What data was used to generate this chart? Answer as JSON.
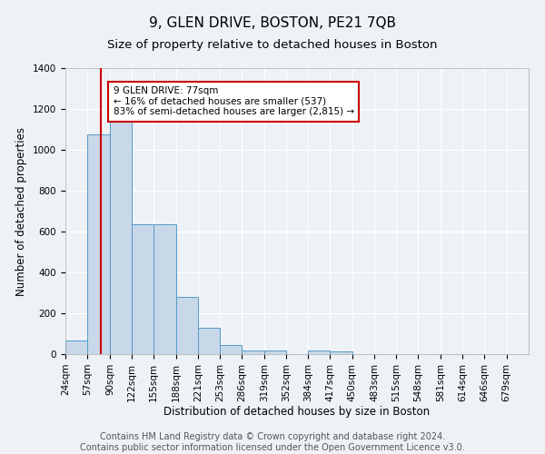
{
  "title": "9, GLEN DRIVE, BOSTON, PE21 7QB",
  "subtitle": "Size of property relative to detached houses in Boston",
  "xlabel": "Distribution of detached houses by size in Boston",
  "ylabel": "Number of detached properties",
  "bar_edges": [
    24,
    57,
    90,
    122,
    155,
    188,
    221,
    253,
    286,
    319,
    352,
    384,
    417,
    450,
    483,
    515,
    548,
    581,
    614,
    646,
    679
  ],
  "bar_heights": [
    65,
    1075,
    1150,
    635,
    635,
    280,
    130,
    45,
    20,
    20,
    0,
    20,
    15,
    0,
    0,
    0,
    0,
    0,
    0,
    0
  ],
  "bar_color": "#c8d8e8",
  "bar_edge_color": "#5599cc",
  "vline_x": 77,
  "vline_color": "#cc0000",
  "annotation_text": "9 GLEN DRIVE: 77sqm\n← 16% of detached houses are smaller (537)\n83% of semi-detached houses are larger (2,815) →",
  "annotation_box_color": "#ffffff",
  "annotation_box_edge": "#cc0000",
  "ylim": [
    0,
    1400
  ],
  "yticks": [
    0,
    200,
    400,
    600,
    800,
    1000,
    1200,
    1400
  ],
  "footer_line1": "Contains HM Land Registry data © Crown copyright and database right 2024.",
  "footer_line2": "Contains public sector information licensed under the Open Government Licence v3.0.",
  "background_color": "#eef2f6",
  "grid_color": "#ffffff",
  "title_fontsize": 11,
  "subtitle_fontsize": 9.5,
  "label_fontsize": 8.5,
  "tick_fontsize": 7.5,
  "footer_fontsize": 7
}
